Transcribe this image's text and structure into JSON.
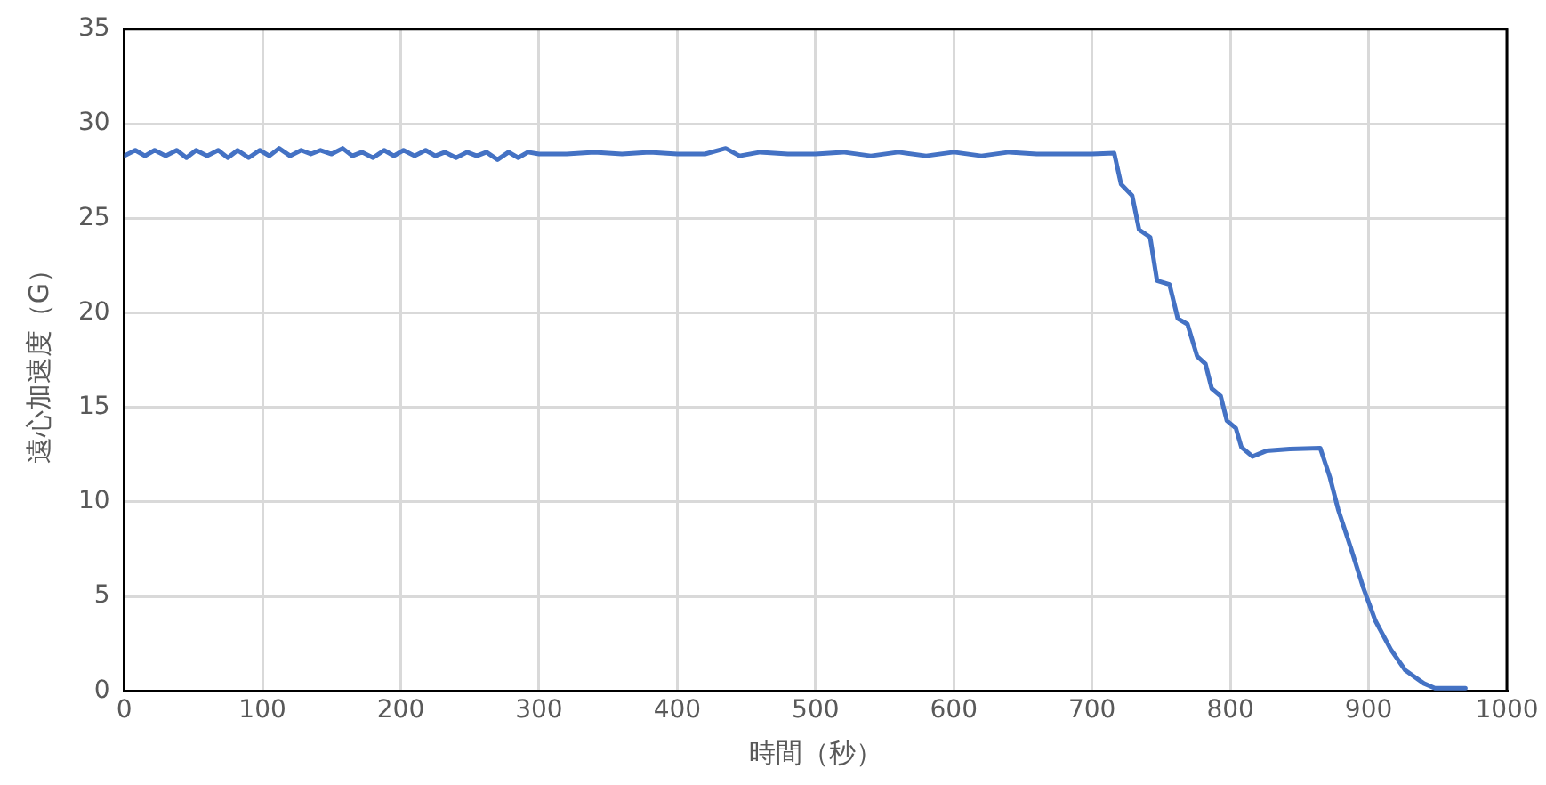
{
  "chart_data": {
    "type": "line",
    "xlabel": "時間（秒）",
    "ylabel": "遠心加速度（G）",
    "xlim": [
      0,
      1000
    ],
    "xticks": [
      0,
      100,
      200,
      300,
      400,
      500,
      600,
      700,
      800,
      900,
      1000
    ],
    "ylim": [
      0,
      35
    ],
    "yticks": [
      0,
      5,
      10,
      15,
      20,
      25,
      30,
      35
    ],
    "grid": true,
    "legend": false,
    "marker": "none",
    "line_style": "solid",
    "series": [
      {
        "color": "#4472c4",
        "x": [
          0,
          8,
          15,
          22,
          30,
          38,
          45,
          52,
          60,
          68,
          75,
          82,
          90,
          98,
          105,
          112,
          120,
          128,
          135,
          142,
          150,
          158,
          165,
          172,
          180,
          188,
          195,
          202,
          210,
          218,
          225,
          232,
          240,
          248,
          255,
          262,
          270,
          278,
          285,
          292,
          300,
          320,
          340,
          360,
          380,
          400,
          420,
          435,
          445,
          460,
          480,
          500,
          520,
          540,
          560,
          580,
          600,
          620,
          640,
          660,
          680,
          700,
          716,
          721,
          729,
          734,
          742,
          747,
          756,
          762,
          769,
          776,
          782,
          786.5,
          793,
          797.5,
          804,
          808,
          816,
          826,
          843,
          865,
          872,
          878,
          887,
          896,
          905,
          916,
          926.5,
          940,
          948,
          970
        ],
        "values": [
          28.3,
          28.6,
          28.3,
          28.6,
          28.3,
          28.6,
          28.2,
          28.6,
          28.3,
          28.6,
          28.2,
          28.6,
          28.2,
          28.6,
          28.3,
          28.7,
          28.3,
          28.6,
          28.4,
          28.6,
          28.4,
          28.7,
          28.3,
          28.5,
          28.2,
          28.6,
          28.3,
          28.6,
          28.3,
          28.6,
          28.3,
          28.5,
          28.2,
          28.5,
          28.3,
          28.5,
          28.1,
          28.5,
          28.2,
          28.5,
          28.4,
          28.4,
          28.5,
          28.4,
          28.5,
          28.4,
          28.4,
          28.7,
          28.3,
          28.5,
          28.4,
          28.4,
          28.5,
          28.3,
          28.5,
          28.3,
          28.5,
          28.3,
          28.5,
          28.4,
          28.4,
          28.4,
          28.45,
          26.8,
          26.2,
          24.4,
          24.0,
          21.7,
          21.5,
          19.7,
          19.4,
          17.7,
          17.3,
          16.0,
          15.6,
          14.3,
          13.9,
          12.9,
          12.4,
          12.7,
          12.8,
          12.85,
          11.3,
          9.6,
          7.6,
          5.5,
          3.7,
          2.2,
          1.1,
          0.4,
          0.15,
          0.15
        ]
      }
    ]
  }
}
